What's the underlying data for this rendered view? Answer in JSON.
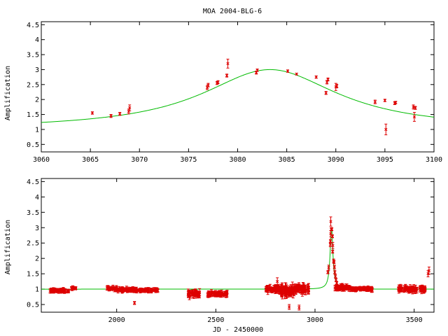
{
  "chart_data": [
    {
      "type": "scatter",
      "title": "MOA 2004-BLG-6",
      "xlabel": "",
      "ylabel": "Amplification",
      "xlim": [
        3060,
        3100
      ],
      "ylim": [
        0.25,
        4.6
      ],
      "xticks": [
        "3060",
        "3065",
        "3070",
        "3075",
        "3080",
        "3085",
        "3090",
        "3095",
        "3100"
      ],
      "yticks": [
        "0.5",
        "1",
        "1.5",
        "2",
        "2.5",
        "3",
        "3.5",
        "4",
        "4.5"
      ],
      "model_color": "#00bb00",
      "point_color": "#dd0000",
      "model": {
        "t0": 3083.3,
        "peak": 3.0,
        "base": 1.0,
        "width": 8.5
      },
      "points": [
        {
          "x": 3065.2,
          "y": 1.55,
          "err": 0.04
        },
        {
          "x": 3067.1,
          "y": 1.45,
          "err": 0.05
        },
        {
          "x": 3068.0,
          "y": 1.52,
          "err": 0.05
        },
        {
          "x": 3068.9,
          "y": 1.6,
          "err": 0.08
        },
        {
          "x": 3069.0,
          "y": 1.72,
          "err": 0.1
        },
        {
          "x": 3076.9,
          "y": 2.4,
          "err": 0.07
        },
        {
          "x": 3077.0,
          "y": 2.48,
          "err": 0.06
        },
        {
          "x": 3077.9,
          "y": 2.55,
          "err": 0.05
        },
        {
          "x": 3078.0,
          "y": 2.58,
          "err": 0.05
        },
        {
          "x": 3078.9,
          "y": 2.8,
          "err": 0.05
        },
        {
          "x": 3079.0,
          "y": 3.2,
          "err": 0.15
        },
        {
          "x": 3081.9,
          "y": 2.9,
          "err": 0.05
        },
        {
          "x": 3082.0,
          "y": 2.98,
          "err": 0.04
        },
        {
          "x": 3085.1,
          "y": 2.95,
          "err": 0.04
        },
        {
          "x": 3086.0,
          "y": 2.85,
          "err": 0.03
        },
        {
          "x": 3088.0,
          "y": 2.75,
          "err": 0.04
        },
        {
          "x": 3089.0,
          "y": 2.22,
          "err": 0.05
        },
        {
          "x": 3089.1,
          "y": 2.58,
          "err": 0.06
        },
        {
          "x": 3089.2,
          "y": 2.67,
          "err": 0.05
        },
        {
          "x": 3090.0,
          "y": 2.42,
          "err": 0.12
        },
        {
          "x": 3090.1,
          "y": 2.45,
          "err": 0.06
        },
        {
          "x": 3094.0,
          "y": 1.92,
          "err": 0.06
        },
        {
          "x": 3095.0,
          "y": 1.97,
          "err": 0.04
        },
        {
          "x": 3095.1,
          "y": 1.0,
          "err": 0.18
        },
        {
          "x": 3096.0,
          "y": 1.88,
          "err": 0.05
        },
        {
          "x": 3096.1,
          "y": 1.9,
          "err": 0.04
        },
        {
          "x": 3097.9,
          "y": 1.75,
          "err": 0.07
        },
        {
          "x": 3098.0,
          "y": 1.42,
          "err": 0.15
        },
        {
          "x": 3098.1,
          "y": 1.72,
          "err": 0.05
        }
      ]
    },
    {
      "type": "scatter",
      "title": "",
      "xlabel": "JD - 2450000",
      "ylabel": "Amplification",
      "xlim": [
        1620,
        3600
      ],
      "ylim": [
        0.25,
        4.6
      ],
      "xticks": [
        "2000",
        "2500",
        "3000",
        "3500"
      ],
      "yticks": [
        "0.5",
        "1",
        "1.5",
        "2",
        "2.5",
        "3",
        "3.5",
        "4",
        "4.5"
      ],
      "model_color": "#00bb00",
      "point_color": "#dd0000",
      "model": {
        "t0": 3083.3,
        "peak": 3.0,
        "base": 1.0,
        "width": 8.5
      },
      "point_groups": [
        {
          "x_range": [
            1660,
            1760
          ],
          "count": 60,
          "center": 0.95,
          "spread": 0.05,
          "err": 0.05
        },
        {
          "x_range": [
            1770,
            1800
          ],
          "count": 12,
          "center": 1.03,
          "spread": 0.04,
          "err": 0.04
        },
        {
          "x_range": [
            1950,
            2000
          ],
          "count": 25,
          "center": 1.02,
          "spread": 0.06,
          "err": 0.05
        },
        {
          "x_range": [
            2000,
            2100
          ],
          "count": 60,
          "center": 0.98,
          "spread": 0.06,
          "err": 0.05
        },
        {
          "x_range": [
            2100,
            2210
          ],
          "count": 55,
          "center": 0.97,
          "spread": 0.05,
          "err": 0.05
        },
        {
          "x_range": [
            2360,
            2420
          ],
          "count": 40,
          "center": 0.85,
          "spread": 0.1,
          "err": 0.08
        },
        {
          "x_range": [
            2450,
            2560
          ],
          "count": 50,
          "center": 0.85,
          "spread": 0.07,
          "err": 0.06
        },
        {
          "x_range": [
            2750,
            2820
          ],
          "count": 60,
          "center": 1.0,
          "spread": 0.08,
          "err": 0.08
        },
        {
          "x_range": [
            2820,
            2900
          ],
          "count": 60,
          "center": 0.95,
          "spread": 0.15,
          "err": 0.12
        },
        {
          "x_range": [
            2900,
            2970
          ],
          "count": 50,
          "center": 1.0,
          "spread": 0.1,
          "err": 0.1
        },
        {
          "x_range": [
            3100,
            3180
          ],
          "count": 80,
          "center": 1.05,
          "spread": 0.06,
          "err": 0.06
        },
        {
          "x_range": [
            3180,
            3290
          ],
          "count": 70,
          "center": 1.0,
          "spread": 0.05,
          "err": 0.05
        },
        {
          "x_range": [
            3420,
            3560
          ],
          "count": 90,
          "center": 1.0,
          "spread": 0.08,
          "err": 0.07
        }
      ],
      "points": [
        {
          "x": 2090,
          "y": 0.55,
          "err": 0.05
        },
        {
          "x": 2870,
          "y": 0.42,
          "err": 0.08
        },
        {
          "x": 2920,
          "y": 0.4,
          "err": 0.08
        },
        {
          "x": 2810,
          "y": 1.25,
          "err": 0.12
        },
        {
          "x": 3570,
          "y": 1.5,
          "err": 0.1
        },
        {
          "x": 3575,
          "y": 1.6,
          "err": 0.12
        },
        {
          "x": 3065,
          "y": 1.55,
          "err": 0.05
        },
        {
          "x": 3069,
          "y": 1.7,
          "err": 0.08
        },
        {
          "x": 3077,
          "y": 2.45,
          "err": 0.07
        },
        {
          "x": 3078,
          "y": 2.56,
          "err": 0.06
        },
        {
          "x": 3079,
          "y": 2.8,
          "err": 0.1
        },
        {
          "x": 3079.5,
          "y": 3.2,
          "err": 0.15
        },
        {
          "x": 3082,
          "y": 2.95,
          "err": 0.05
        },
        {
          "x": 3085,
          "y": 2.95,
          "err": 0.05
        },
        {
          "x": 3088,
          "y": 2.72,
          "err": 0.05
        },
        {
          "x": 3089,
          "y": 2.22,
          "err": 0.05
        },
        {
          "x": 3090,
          "y": 2.42,
          "err": 0.1
        },
        {
          "x": 3094,
          "y": 1.92,
          "err": 0.06
        },
        {
          "x": 3096,
          "y": 1.88,
          "err": 0.05
        },
        {
          "x": 3098,
          "y": 1.72,
          "err": 0.06
        },
        {
          "x": 3100,
          "y": 1.55,
          "err": 0.06
        },
        {
          "x": 3103,
          "y": 1.42,
          "err": 0.06
        },
        {
          "x": 3106,
          "y": 1.3,
          "err": 0.06
        },
        {
          "x": 3110,
          "y": 1.2,
          "err": 0.05
        }
      ]
    }
  ]
}
